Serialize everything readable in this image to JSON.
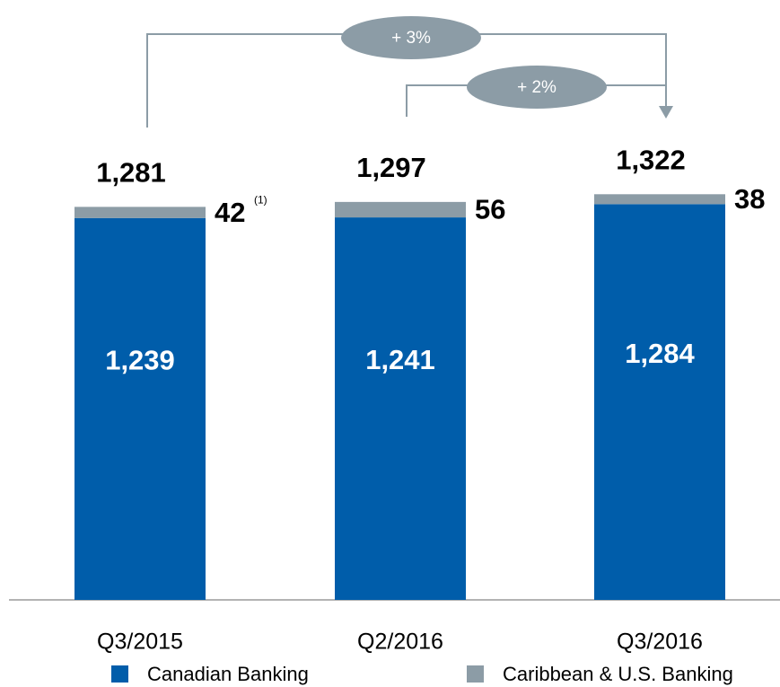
{
  "chart_data": {
    "type": "stacked_bar",
    "categories": [
      "Q3/2015",
      "Q2/2016",
      "Q3/2016"
    ],
    "series": [
      {
        "name": "Canadian Banking",
        "color": "#005daa",
        "values": [
          1239,
          1241,
          1284
        ],
        "value_labels": [
          "1,239",
          "1,241",
          "1,284"
        ]
      },
      {
        "name": "Caribbean & U.S. Banking",
        "color": "#8c9ca6",
        "values": [
          42,
          56,
          38
        ]
      }
    ],
    "totals": [
      1281,
      1297,
      1322
    ],
    "total_labels": [
      "1,281",
      "1,297",
      "1,322"
    ],
    "footnote_marker": "(1)",
    "annotations": [
      "+ 3%",
      "+ 2%"
    ]
  }
}
